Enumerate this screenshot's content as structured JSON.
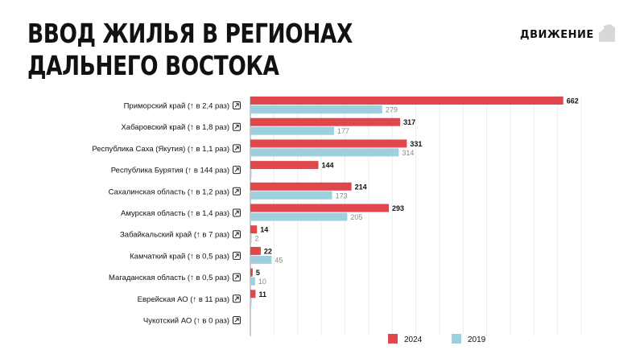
{
  "header": {
    "title_line1": "ВВОД ЖИЛЬЯ В РЕГИОНАХ",
    "title_line2": "ДАЛЬНЕГО ВОСТОКА",
    "brand": "ДВИЖЕНИЕ"
  },
  "chart_data": {
    "type": "bar",
    "orientation": "horizontal",
    "title": "ВВОД ЖИЛЬЯ В РЕГИОНАХ ДАЛЬНЕГО ВОСТОКА",
    "categories": [
      "Приморский край (↑ в 2,4 раз)",
      "Хабаровский край (↑ в 1,8 раз)",
      "Республика Саха (Якутия) (↑ в 1,1 раз)",
      "Республика Бурятия (↑ в 144 раз)",
      "Сахалинская область (↑ в 1,2 раз)",
      "Амурская область (↑ в 1,4 раз)",
      "Забайкальский край (↑ в 7 раз)",
      "Камчаткий край (↑ в 0,5 раз)",
      "Магаданская область (↑ в 0,5 раз)",
      "Еврейская АО (↑ в 11 раз)",
      "Чукотский АО (↑ в 0 раз)"
    ],
    "series": [
      {
        "name": "2024",
        "color": "#e0474c",
        "values": [
          662,
          317,
          331,
          144,
          214,
          293,
          14,
          22,
          5,
          11,
          0
        ],
        "labels": [
          "662",
          "317",
          "331",
          "144",
          "214",
          "293",
          "14",
          "22",
          "5",
          "11",
          ""
        ]
      },
      {
        "name": "2019",
        "color": "#9ecfdf",
        "values": [
          279,
          177,
          314,
          1,
          173,
          205,
          2,
          45,
          10,
          1,
          0
        ],
        "labels": [
          "279",
          "177",
          "314",
          "",
          "173",
          "205",
          "2",
          "45",
          "10",
          "",
          ""
        ]
      }
    ],
    "xlim": [
      0,
      700
    ],
    "grid": true,
    "legend_position": "bottom-right",
    "link_icon": "external-link-icon"
  }
}
